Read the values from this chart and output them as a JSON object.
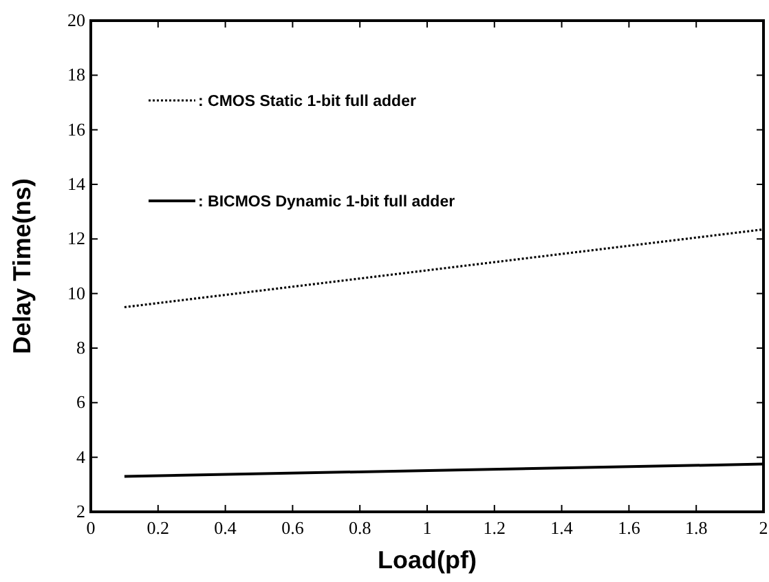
{
  "chart_data": {
    "type": "line",
    "xlabel": "Load(pf)",
    "ylabel": "Delay Time(ns)",
    "xlim": [
      0,
      2
    ],
    "ylim": [
      2,
      20
    ],
    "xticks": [
      0,
      0.2,
      0.4,
      0.6,
      0.8,
      1,
      1.2,
      1.4,
      1.6,
      1.8,
      2
    ],
    "yticks": [
      2,
      4,
      6,
      8,
      10,
      12,
      14,
      16,
      18,
      20
    ],
    "x": [
      0.1,
      2
    ],
    "series": [
      {
        "name": ": CMOS Static 1-bit full adder",
        "color": "#000000",
        "line_style": "dotted",
        "values": [
          9.5,
          12.35
        ]
      },
      {
        "name": ": BICMOS Dynamic 1-bit full adder",
        "color": "#000000",
        "line_style": "solid",
        "values": [
          3.3,
          3.75
        ]
      }
    ],
    "legend": "top left",
    "grid": false,
    "marker": "none"
  }
}
